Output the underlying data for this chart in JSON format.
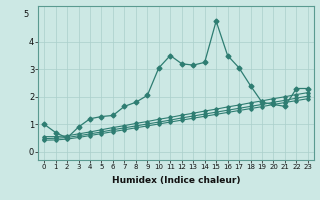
{
  "xlabel": "Humidex (Indice chaleur)",
  "background_color": "#cce8e4",
  "grid_color": "#aacfcb",
  "line_color": "#2e7d72",
  "x_min": -0.5,
  "x_max": 23.5,
  "y_min": -0.3,
  "y_max": 5.3,
  "yticks": [
    0,
    1,
    2,
    3,
    4
  ],
  "xtick_labels": [
    "0",
    "1",
    "2",
    "3",
    "4",
    "5",
    "6",
    "7",
    "8",
    "9",
    "10",
    "11",
    "12",
    "13",
    "14",
    "15",
    "16",
    "17",
    "18",
    "19",
    "20",
    "21",
    "22",
    "23"
  ],
  "series1_x": [
    0,
    1,
    2,
    3,
    4,
    5,
    6,
    7,
    8,
    9,
    10,
    11,
    12,
    13,
    14,
    15,
    16,
    17,
    18,
    19,
    20,
    21,
    22,
    23
  ],
  "series1_y": [
    1.0,
    0.7,
    0.5,
    0.9,
    1.2,
    1.28,
    1.32,
    1.65,
    1.8,
    2.05,
    3.05,
    3.5,
    3.2,
    3.15,
    3.25,
    4.75,
    3.5,
    3.05,
    2.4,
    1.8,
    1.72,
    1.65,
    2.3,
    2.3
  ],
  "series2_x": [
    0,
    1,
    2,
    3,
    4,
    5,
    6,
    7,
    8,
    9,
    10,
    11,
    12,
    13,
    14,
    15,
    16,
    17,
    18,
    19,
    20,
    21,
    22,
    23
  ],
  "series2_y": [
    0.55,
    0.55,
    0.58,
    0.65,
    0.72,
    0.8,
    0.88,
    0.95,
    1.03,
    1.1,
    1.18,
    1.25,
    1.33,
    1.4,
    1.48,
    1.55,
    1.63,
    1.7,
    1.78,
    1.85,
    1.93,
    2.0,
    2.08,
    2.15
  ],
  "series3_x": [
    0,
    1,
    2,
    3,
    4,
    5,
    6,
    7,
    8,
    9,
    10,
    11,
    12,
    13,
    14,
    15,
    16,
    17,
    18,
    19,
    20,
    21,
    22,
    23
  ],
  "series3_y": [
    0.48,
    0.49,
    0.52,
    0.58,
    0.65,
    0.72,
    0.8,
    0.87,
    0.94,
    1.01,
    1.08,
    1.15,
    1.23,
    1.3,
    1.37,
    1.44,
    1.51,
    1.58,
    1.65,
    1.72,
    1.8,
    1.87,
    1.95,
    2.02
  ],
  "series4_x": [
    0,
    1,
    2,
    3,
    4,
    5,
    6,
    7,
    8,
    9,
    10,
    11,
    12,
    13,
    14,
    15,
    16,
    17,
    18,
    19,
    20,
    21,
    22,
    23
  ],
  "series4_y": [
    0.42,
    0.43,
    0.46,
    0.52,
    0.59,
    0.66,
    0.73,
    0.8,
    0.87,
    0.94,
    1.01,
    1.08,
    1.15,
    1.22,
    1.29,
    1.36,
    1.43,
    1.5,
    1.57,
    1.64,
    1.72,
    1.79,
    1.86,
    1.93
  ]
}
